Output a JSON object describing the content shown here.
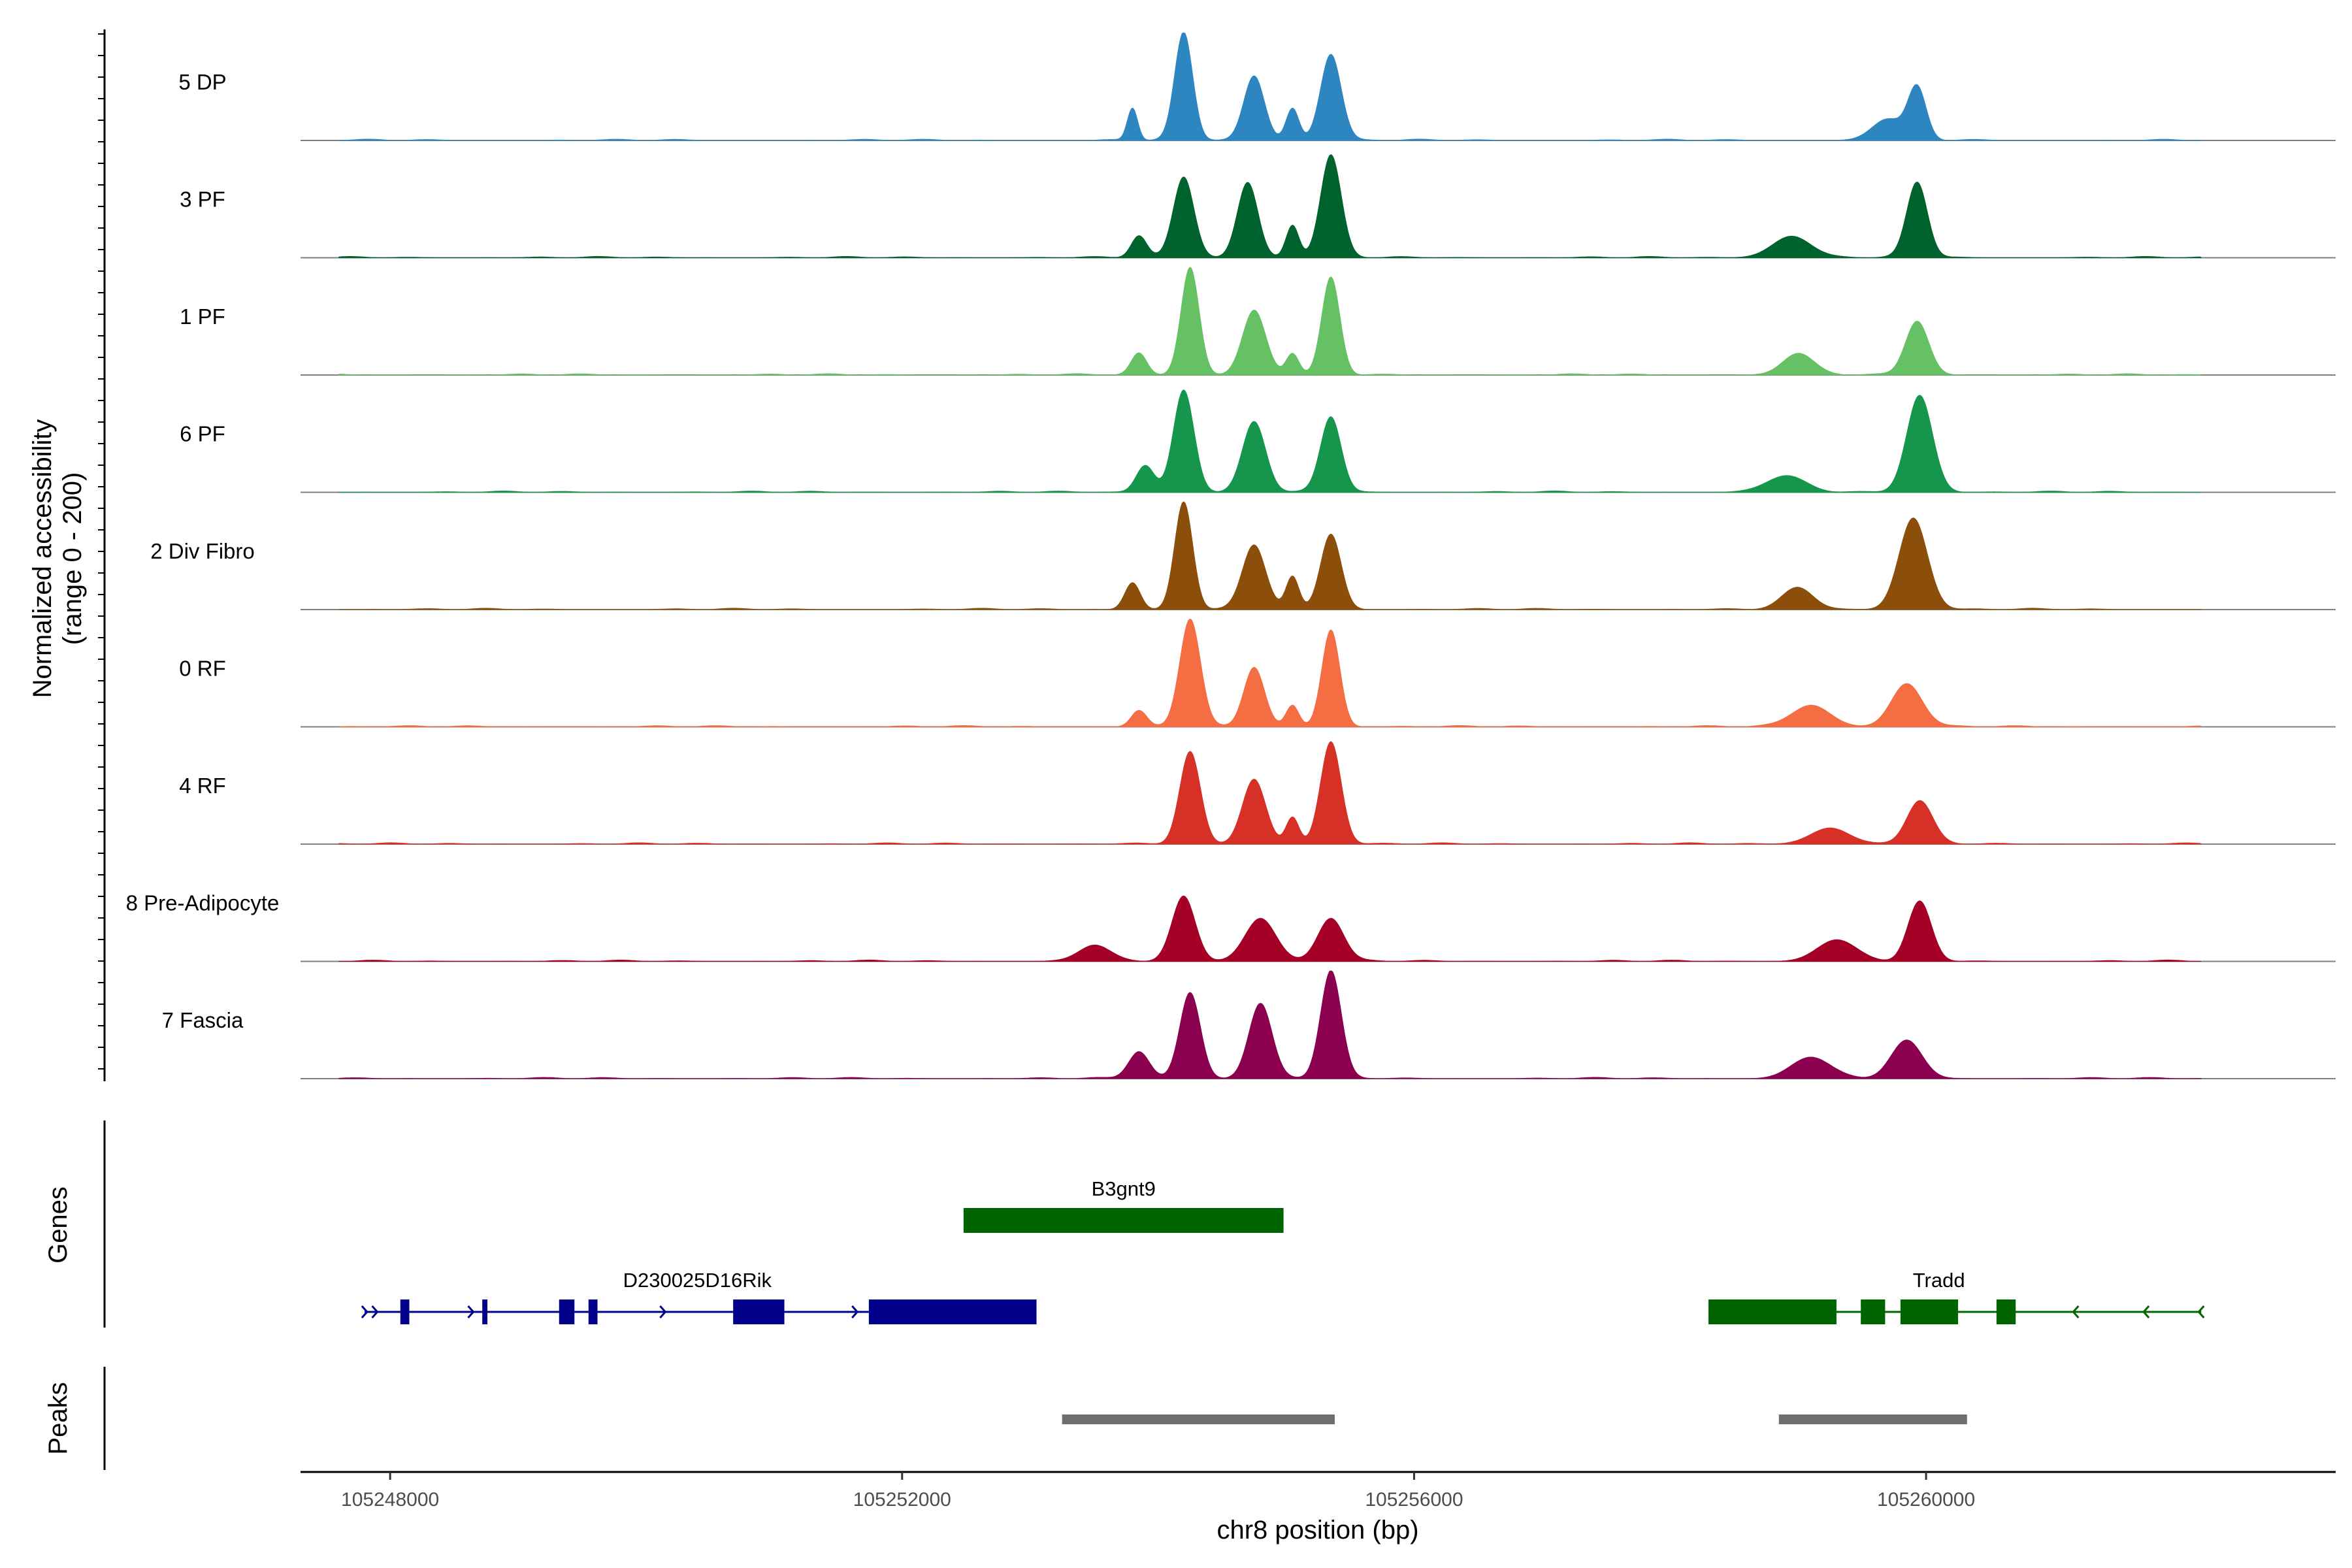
{
  "chart_data": {
    "type": "area",
    "title": "",
    "xlabel": "chr8 position (bp)",
    "ylabel": "Normalized accessibility",
    "ylabel_sub": "(range 0 - 200)",
    "xlim": [
      105247300,
      105263200
    ],
    "ylim": [
      0,
      200
    ],
    "x_ticks": [
      105248000,
      105252000,
      105256000,
      105260000
    ],
    "x_tick_labels": [
      "105248000",
      "105252000",
      "105256000",
      "105260000"
    ],
    "panel_labels": {
      "genes": "Genes",
      "peaks": "Peaks"
    },
    "series": [
      {
        "name": "5 DP",
        "color": "#2E86C1",
        "peaks": [
          [
            105253800,
            60,
            40
          ],
          [
            105254200,
            200,
            70
          ],
          [
            105254750,
            120,
            80
          ],
          [
            105255050,
            60,
            50
          ],
          [
            105255350,
            160,
            80
          ],
          [
            105259700,
            40,
            120
          ],
          [
            105259930,
            95,
            70
          ]
        ]
      },
      {
        "name": "3 PF",
        "color": "#00632E",
        "peaks": [
          [
            105253850,
            40,
            60
          ],
          [
            105254200,
            150,
            80
          ],
          [
            105254700,
            140,
            80
          ],
          [
            105255050,
            60,
            50
          ],
          [
            105255350,
            190,
            80
          ],
          [
            105258950,
            40,
            150
          ],
          [
            105259930,
            140,
            80
          ]
        ]
      },
      {
        "name": "1 PF",
        "color": "#66C164",
        "peaks": [
          [
            105253850,
            40,
            60
          ],
          [
            105254250,
            200,
            70
          ],
          [
            105254750,
            120,
            90
          ],
          [
            105255050,
            40,
            50
          ],
          [
            105255350,
            180,
            70
          ],
          [
            105259000,
            40,
            120
          ],
          [
            105259930,
            100,
            90
          ]
        ]
      },
      {
        "name": "6 PF",
        "color": "#16964C",
        "peaks": [
          [
            105253900,
            50,
            70
          ],
          [
            105254200,
            190,
            80
          ],
          [
            105254750,
            130,
            90
          ],
          [
            105255350,
            140,
            80
          ],
          [
            105258900,
            30,
            150
          ],
          [
            105259950,
            180,
            100
          ]
        ]
      },
      {
        "name": "2 Div Fibro",
        "color": "#8B4F0B",
        "peaks": [
          [
            105253800,
            50,
            60
          ],
          [
            105254200,
            200,
            70
          ],
          [
            105254750,
            120,
            90
          ],
          [
            105255050,
            60,
            50
          ],
          [
            105255350,
            140,
            80
          ],
          [
            105259000,
            40,
            120
          ],
          [
            105259900,
            170,
            110
          ]
        ]
      },
      {
        "name": "0 RF",
        "color": "#F46D43",
        "peaks": [
          [
            105253850,
            30,
            60
          ],
          [
            105254250,
            200,
            80
          ],
          [
            105254750,
            110,
            80
          ],
          [
            105255050,
            40,
            50
          ],
          [
            105255350,
            180,
            70
          ],
          [
            105259100,
            40,
            150
          ],
          [
            105259850,
            80,
            120
          ]
        ]
      },
      {
        "name": "4 RF",
        "color": "#D73027",
        "peaks": [
          [
            105254250,
            170,
            80
          ],
          [
            105254750,
            120,
            90
          ],
          [
            105255050,
            50,
            50
          ],
          [
            105255350,
            190,
            80
          ],
          [
            105259250,
            30,
            150
          ],
          [
            105259950,
            80,
            100
          ]
        ]
      },
      {
        "name": "8 Pre-Adipocyte",
        "color": "#A50026",
        "peaks": [
          [
            105253500,
            30,
            120
          ],
          [
            105254200,
            120,
            90
          ],
          [
            105254800,
            80,
            120
          ],
          [
            105255350,
            80,
            100
          ],
          [
            105259300,
            40,
            150
          ],
          [
            105259950,
            110,
            90
          ]
        ]
      },
      {
        "name": "7 Fascia",
        "color": "#8C0050",
        "peaks": [
          [
            105253850,
            50,
            80
          ],
          [
            105254250,
            160,
            80
          ],
          [
            105254800,
            140,
            90
          ],
          [
            105255350,
            200,
            80
          ],
          [
            105259100,
            40,
            150
          ],
          [
            105259850,
            70,
            120
          ]
        ]
      }
    ],
    "genes": [
      {
        "name": "D230025D16Rik",
        "strand": "+",
        "color": "#00008B",
        "start": 105247800,
        "end": 105253050,
        "exons": [
          [
            105248080,
            105248150
          ],
          [
            105248720,
            105248760
          ],
          [
            105249320,
            105249440
          ],
          [
            105249550,
            105249620
          ],
          [
            105250680,
            105251080
          ],
          [
            105251740,
            105253050
          ]
        ]
      },
      {
        "name": "B3gnt9",
        "strand": "",
        "color": "#006400",
        "start": 105252480,
        "end": 105254980,
        "exons": [
          [
            105252480,
            105254980
          ]
        ]
      },
      {
        "name": "Tradd",
        "strand": "-",
        "color": "#006400",
        "start": 105258300,
        "end": 105262150,
        "exons": [
          [
            105258300,
            105259300
          ],
          [
            105259490,
            105259680
          ],
          [
            105259800,
            105260250
          ],
          [
            105260550,
            105260700
          ]
        ]
      }
    ],
    "peaks": [
      [
        105253250,
        105255380
      ],
      [
        105258850,
        105260320
      ]
    ]
  }
}
